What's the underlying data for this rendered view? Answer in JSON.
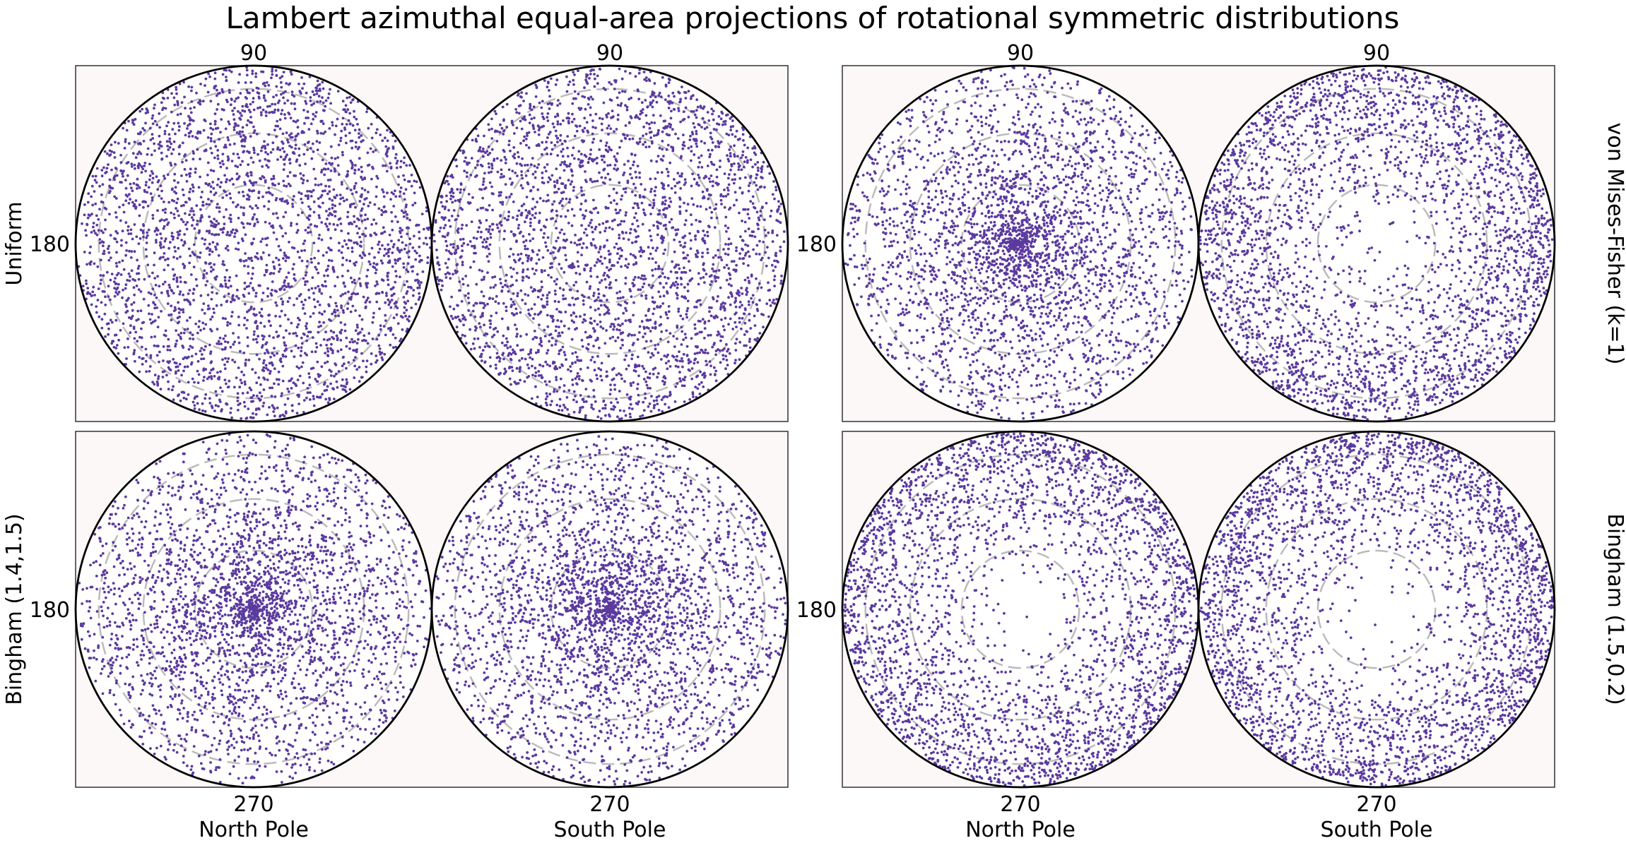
{
  "chart_data": {
    "type": "scatter",
    "title": "Lambert azimuthal equal-area projections of rotational symmetric distributions",
    "projection": "Lambert azimuthal equal-area",
    "colors": {
      "points": "#5b3a9e",
      "panel_background": "#fcf8f8",
      "grid": "#bbbbbb",
      "circle": "#000000"
    },
    "grid": "dashed concentric circles",
    "hemispheres": [
      "North Pole",
      "South Pole"
    ],
    "tick_labels": {
      "top": "90",
      "left": "180",
      "bottom": "270"
    },
    "panels": [
      {
        "label": "Uniform",
        "label_side": "left",
        "points_per_hemisphere": 3000,
        "north_profile": "uniform",
        "south_profile": "uniform"
      },
      {
        "label": "von Mises-Fisher (k=1)",
        "label_side": "right",
        "points_per_hemisphere": 3000,
        "north_profile": "concentrated at center",
        "south_profile": "sparse at center"
      },
      {
        "label": "Bingham (1.4,1.5)",
        "label_side": "left",
        "points_per_hemisphere": 3000,
        "north_profile": "concentrated at center",
        "south_profile": "concentrated at center"
      },
      {
        "label": "Bingham (1.5,0.2)",
        "label_side": "right",
        "points_per_hemisphere": 3000,
        "north_profile": "concentrated at rim",
        "south_profile": "concentrated at rim"
      }
    ]
  }
}
